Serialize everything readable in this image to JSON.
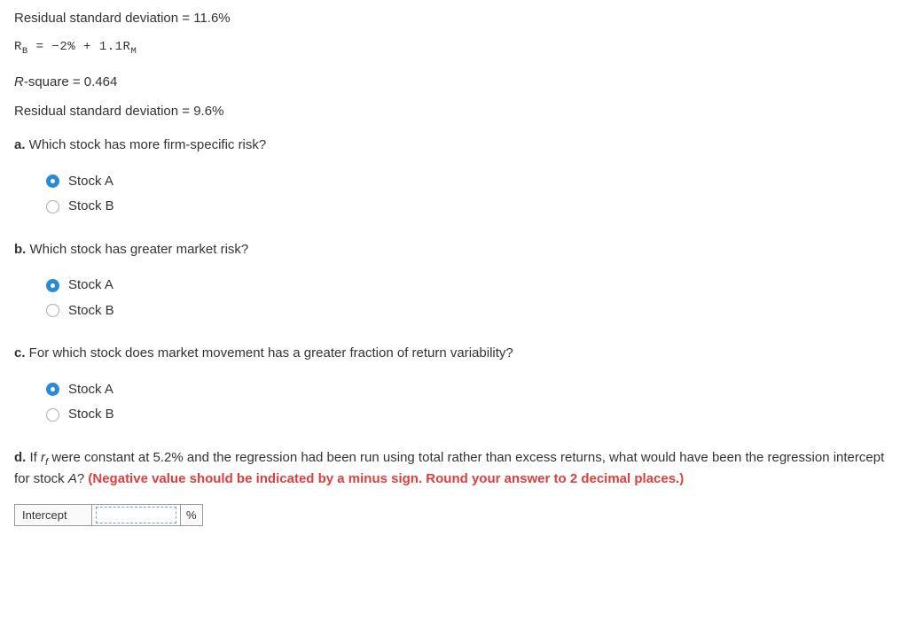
{
  "intro": {
    "residual_sd_1": "Residual standard deviation = 11.6%",
    "equation": {
      "prefix": "R",
      "sub1": "B",
      "eq": " = −2% + 1.1R",
      "sub2": "M"
    },
    "r_prefix": "R",
    "r_square_suffix": "-square = 0.464",
    "residual_sd_2": "Residual standard deviation = 9.6%"
  },
  "questions": {
    "a": {
      "label": "a.",
      "text": " Which stock has more firm-specific risk?"
    },
    "b": {
      "label": "b.",
      "text": " Which stock has greater market risk?"
    },
    "c": {
      "label": "c.",
      "text": " For which stock does market movement has a greater fraction of return variability?"
    },
    "d": {
      "label": "d.",
      "pre": " If ",
      "var_r": "r",
      "var_sub": "f",
      "mid": " were constant at 5.2% and the regression had been run using total rather than excess returns, what would have been the regression intercept for stock ",
      "stockA": "A",
      "post": "? ",
      "warn": "(Negative value should be indicated by a minus sign. Round your answer to 2 decimal places.)"
    }
  },
  "options": {
    "stock_a": "Stock A",
    "stock_b": "Stock B"
  },
  "table": {
    "label": "Intercept",
    "unit": "%"
  }
}
